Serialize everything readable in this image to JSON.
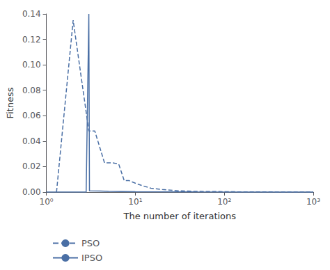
{
  "chart_data": {
    "type": "line",
    "xlabel": "The number of iterations",
    "ylabel": "Fitness",
    "log": "x",
    "grid": false,
    "legend": "bottom",
    "xlim": [
      1.0,
      1000.0
    ],
    "xticks": [
      {
        "value": 1,
        "label": "10⁰"
      },
      {
        "value": 10,
        "label": "10¹"
      },
      {
        "value": 100,
        "label": "10²"
      },
      {
        "value": 1000,
        "label": "10³"
      }
    ],
    "ylim": [
      0,
      0.14
    ],
    "yticks": [
      {
        "value": 0,
        "label": "0.00"
      },
      0.02,
      0.04,
      0.06,
      0.08,
      {
        "value": 0.1,
        "label": "0.10"
      },
      0.12,
      0.14
    ],
    "series": [
      {
        "name": "PSO",
        "color": "#4a6fa5",
        "line_style": "dashed",
        "x": [
          1.3,
          2.0,
          3.0,
          3.5,
          4.5,
          5.5,
          6.5,
          7.5,
          8.5,
          10.0,
          12.0,
          15.0,
          20.0,
          30.0,
          50.0,
          100.0,
          200.0,
          500.0,
          1000.0
        ],
        "values": [
          0.0,
          0.135,
          0.048,
          0.048,
          0.023,
          0.023,
          0.022,
          0.009,
          0.009,
          0.007,
          0.005,
          0.003,
          0.002,
          0.001,
          0.0005,
          0.0003,
          0.0001,
          5e-05,
          0.0
        ]
      },
      {
        "name": "IPSO",
        "color": "#4a6fa5",
        "line_style": "solid",
        "x": [
          1.0,
          2.8,
          3.0,
          3.05,
          4.0,
          5.0,
          10.0,
          50.0,
          200.0,
          1000.0
        ],
        "values": [
          0.0,
          0.0,
          0.14,
          0.001,
          0.0008,
          0.0005,
          0.0003,
          0.0001,
          5e-05,
          0.0
        ]
      }
    ]
  }
}
